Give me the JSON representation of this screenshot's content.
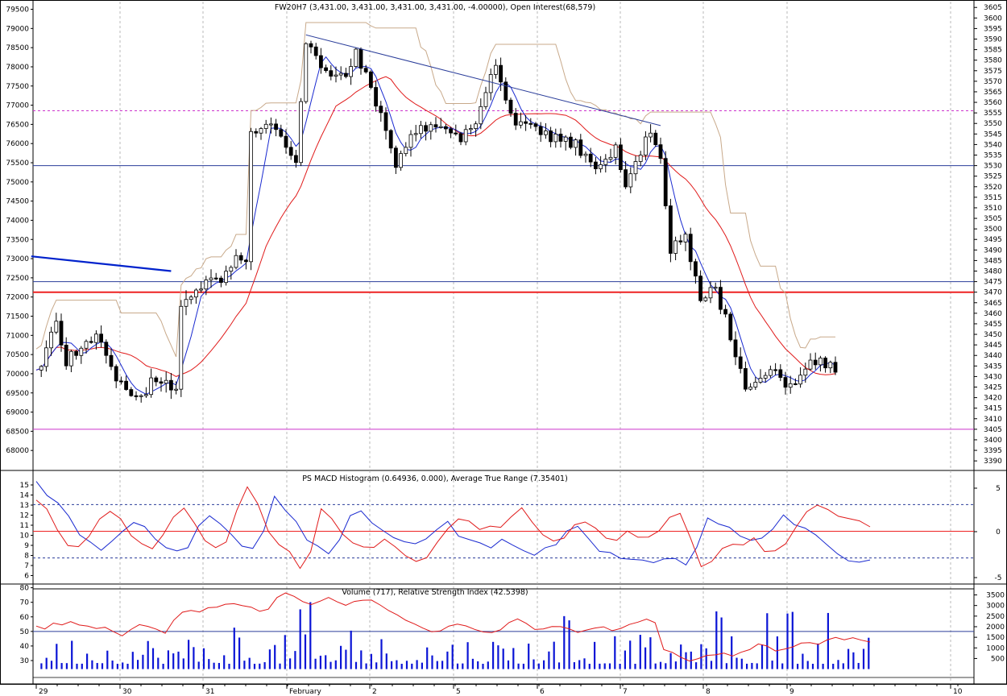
{
  "chart_data": [
    {
      "type": "candlestick",
      "title": "FW20H7 (3,431.00, 3,431.00, 3,431.00, 3,431.00, -4.00000), Open Interest(68,579)",
      "left_axis": {
        "range": [
          67500,
          79700
        ],
        "ticks": [
          68000,
          68500,
          69000,
          69500,
          70000,
          70500,
          71000,
          71500,
          72000,
          72500,
          73000,
          73500,
          74000,
          74500,
          75000,
          75500,
          76000,
          76500,
          77000,
          77500,
          78000,
          78500,
          79000,
          79500
        ]
      },
      "right_axis": {
        "range": [
          3387,
          3607
        ],
        "ticks": [
          3390,
          3395,
          3400,
          3405,
          3410,
          3415,
          3420,
          3425,
          3430,
          3435,
          3440,
          3445,
          3450,
          3455,
          3460,
          3465,
          3470,
          3475,
          3480,
          3485,
          3490,
          3495,
          3500,
          3505,
          3510,
          3515,
          3520,
          3525,
          3530,
          3535,
          3540,
          3545,
          3550,
          3555,
          3560,
          3565,
          3570,
          3575,
          3580,
          3585,
          3590,
          3595,
          3600,
          3605
        ]
      },
      "key_points": [
        {
          "t": 0,
          "price": 3432
        },
        {
          "t": 4,
          "price": 3455
        },
        {
          "t": 6,
          "price": 3438
        },
        {
          "t": 12,
          "price": 3450
        },
        {
          "t": 16,
          "price": 3428
        },
        {
          "t": 20,
          "price": 3418
        },
        {
          "t": 24,
          "price": 3430
        },
        {
          "t": 28,
          "price": 3422
        },
        {
          "t": 29,
          "price": 3466
        },
        {
          "t": 34,
          "price": 3475
        },
        {
          "t": 38,
          "price": 3478
        },
        {
          "t": 40,
          "price": 3488
        },
        {
          "t": 42,
          "price": 3482
        },
        {
          "t": 43,
          "price": 3546
        },
        {
          "t": 48,
          "price": 3550
        },
        {
          "t": 52,
          "price": 3530
        },
        {
          "t": 54,
          "price": 3588
        },
        {
          "t": 58,
          "price": 3574
        },
        {
          "t": 62,
          "price": 3573
        },
        {
          "t": 64,
          "price": 3583
        },
        {
          "t": 68,
          "price": 3560
        },
        {
          "t": 72,
          "price": 3532
        },
        {
          "t": 76,
          "price": 3545
        },
        {
          "t": 80,
          "price": 3550
        },
        {
          "t": 84,
          "price": 3543
        },
        {
          "t": 88,
          "price": 3548
        },
        {
          "t": 92,
          "price": 3578
        },
        {
          "t": 96,
          "price": 3550
        },
        {
          "t": 100,
          "price": 3546
        },
        {
          "t": 104,
          "price": 3542
        },
        {
          "t": 108,
          "price": 3540
        },
        {
          "t": 112,
          "price": 3530
        },
        {
          "t": 116,
          "price": 3538
        },
        {
          "t": 118,
          "price": 3518
        },
        {
          "t": 120,
          "price": 3532
        },
        {
          "t": 123,
          "price": 3548
        },
        {
          "t": 125,
          "price": 3533
        },
        {
          "t": 127,
          "price": 3490
        },
        {
          "t": 130,
          "price": 3495
        },
        {
          "t": 133,
          "price": 3468
        },
        {
          "t": 136,
          "price": 3470
        },
        {
          "t": 139,
          "price": 3450
        },
        {
          "t": 142,
          "price": 3425
        },
        {
          "t": 145,
          "price": 3428
        },
        {
          "t": 148,
          "price": 3433
        },
        {
          "t": 151,
          "price": 3425
        },
        {
          "t": 154,
          "price": 3435
        },
        {
          "t": 157,
          "price": 3436
        },
        {
          "t": 160,
          "price": 3433
        }
      ],
      "horizontal_lines": [
        {
          "price": 3405,
          "color": "#cc33cc",
          "style": "solid"
        },
        {
          "price": 3470,
          "color": "#ee2222",
          "style": "solid-thick"
        },
        {
          "price": 3475,
          "color": "#2a3d9a",
          "style": "solid"
        },
        {
          "price": 3530,
          "color": "#2a3d9a",
          "style": "solid"
        },
        {
          "price": 3556,
          "color": "#cc33cc",
          "style": "dashed"
        }
      ],
      "trendlines": [
        {
          "from": {
            "t": 54,
            "price": 3592
          },
          "to": {
            "t": 125,
            "price": 3549
          },
          "color": "#2a3d9a"
        },
        {
          "from": {
            "t": -1,
            "price": 3487
          },
          "to": {
            "t": 27,
            "price": 3480
          },
          "color": "#0022cc"
        }
      ],
      "dates": [
        "29",
        "30",
        "31",
        "February",
        "2",
        "5",
        "6",
        "7",
        "8",
        "9",
        "10"
      ]
    },
    {
      "type": "line",
      "title": "PS MACD Histogram (0.64936, 0.000), Average True Range (7.35401)",
      "left_axis": {
        "range": [
          5.4,
          16.2
        ],
        "ticks": [
          6,
          7,
          8,
          9,
          10,
          11,
          12,
          13,
          14,
          15
        ]
      },
      "right_axis": {
        "ticks": [
          5,
          0,
          -5
        ]
      },
      "reference_lines": [
        {
          "value": 13.05,
          "color": "#2a3d9a",
          "style": "dashed"
        },
        {
          "value": 10.4,
          "color": "#ee2222",
          "style": "solid"
        },
        {
          "value": 7.75,
          "color": "#2a3d9a",
          "style": "dashed"
        }
      ],
      "series": [
        {
          "color": "#1a2ad0",
          "values": [
            15.2,
            14.0,
            13.0,
            11.8,
            10.2,
            9.2,
            8.6,
            9.4,
            10.6,
            11.4,
            10.8,
            9.6,
            8.8,
            8.4,
            8.6,
            10.8,
            12.0,
            11.2,
            10.0,
            9.0,
            8.6,
            10.2,
            13.8,
            12.6,
            11.2,
            9.4,
            8.8,
            8.2,
            9.4,
            11.8,
            12.2,
            11.0,
            10.4,
            10.0,
            9.6,
            9.2,
            9.8,
            10.6,
            11.2,
            10.0,
            9.6,
            9.0,
            8.8,
            9.4,
            9.0,
            8.6,
            8.2,
            8.8,
            9.2,
            10.2,
            10.8,
            9.6,
            8.6,
            8.2,
            7.6,
            7.4,
            7.5,
            7.2,
            7.8,
            7.6,
            7.3,
            8.6,
            11.8,
            11.2,
            10.8,
            10.0,
            9.4,
            9.6,
            10.4,
            12.0,
            11.0,
            10.6,
            9.8,
            9.0,
            8.4,
            7.6,
            7.4,
            7.5
          ]
        },
        {
          "color": "#e01a1a",
          "values": [
            13.6,
            12.4,
            10.6,
            9.2,
            8.8,
            9.8,
            11.4,
            12.2,
            11.6,
            10.2,
            9.0,
            8.6,
            9.8,
            11.8,
            12.6,
            11.0,
            9.6,
            8.8,
            9.4,
            12.4,
            15.0,
            13.2,
            10.6,
            9.0,
            8.2,
            6.6,
            8.6,
            12.4,
            11.6,
            10.2,
            9.4,
            8.6,
            8.8,
            9.4,
            8.8,
            8.0,
            7.6,
            8.0,
            9.2,
            10.8,
            11.8,
            11.2,
            10.4,
            10.8,
            11.0,
            11.6,
            12.8,
            11.4,
            9.8,
            9.2,
            9.6,
            10.8,
            11.2,
            10.6,
            9.8,
            9.6,
            10.2,
            10.0,
            9.8,
            10.6,
            11.8,
            12.2,
            9.8,
            6.8,
            7.6,
            8.6,
            9.2,
            9.0,
            9.8,
            8.6,
            8.4,
            9.2,
            10.8,
            12.4,
            13.2,
            12.6,
            12.0,
            11.6,
            11.2,
            11.0
          ]
        }
      ]
    },
    {
      "type": "bar",
      "title": "Volume (717), Relative Strength Index (42.5398)",
      "left_axis": {
        "range": [
          14.5,
          82
        ],
        "ticks": [
          30,
          40,
          50,
          60,
          70,
          80
        ]
      },
      "right_axis": {
        "range": [
          -700,
          3900
        ],
        "ticks": [
          500,
          1000,
          1500,
          2000,
          2500,
          3000,
          3500
        ]
      },
      "reference_lines": [
        {
          "value": 50,
          "color": "#2a3d9a",
          "style": "solid"
        }
      ],
      "series": [
        {
          "name": "Volume",
          "color": "#0a14d6"
        },
        {
          "name": "RSI",
          "color": "#e01a1a",
          "values": [
            53,
            52,
            55,
            54,
            56,
            55,
            54,
            52,
            53,
            50,
            47,
            51,
            55,
            54,
            51,
            49,
            57,
            63,
            65,
            63,
            66,
            67,
            68,
            69,
            68,
            66,
            64,
            66,
            73,
            76,
            74,
            71,
            69,
            71,
            73,
            71,
            68,
            70,
            72,
            71,
            68,
            65,
            61,
            57,
            55,
            52,
            50,
            51,
            53,
            55,
            54,
            52,
            50,
            49,
            51,
            56,
            58,
            55,
            52,
            51,
            53,
            54,
            52,
            50,
            51,
            52,
            53,
            51,
            52,
            55,
            57,
            59,
            56,
            37,
            36,
            32,
            30,
            31,
            33,
            34,
            35,
            33,
            36,
            38,
            42,
            40,
            37,
            38,
            40,
            42,
            43,
            41,
            44,
            46,
            45,
            46,
            44,
            43
          ]
        }
      ]
    }
  ]
}
